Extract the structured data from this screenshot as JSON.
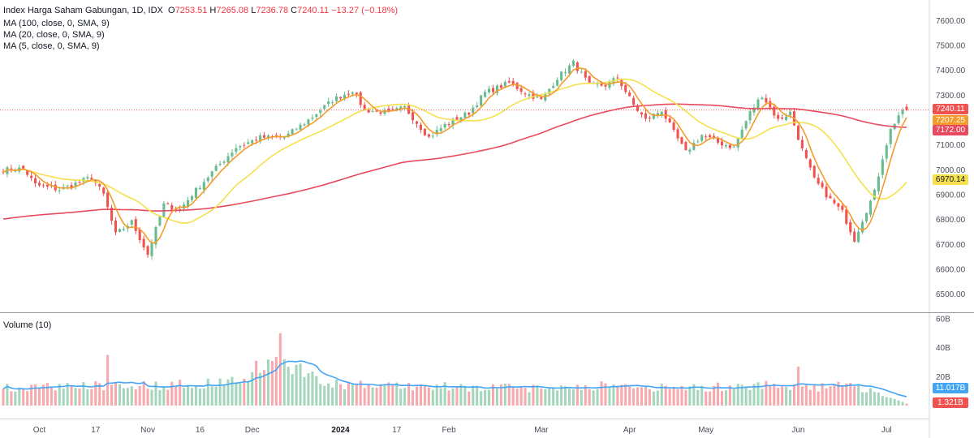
{
  "legend": {
    "symbol": "Index Harga Saham Gabungan, 1D, IDX",
    "ohlc": {
      "open_label": "O",
      "open": "7253.51",
      "high_label": "H",
      "high": "7265.08",
      "low_label": "L",
      "low": "7236.78",
      "close_label": "C",
      "close": "7240.11",
      "change": "−13.27 (−0.18%)"
    },
    "ma100": "MA (100, close, 0, SMA, 9)",
    "ma20": "MA (20, close, 0, SMA, 9)",
    "ma5": "MA (5, close, 0, SMA, 9)",
    "volume": "Volume (10)"
  },
  "price_tags": {
    "last": "7240.11",
    "ma5": "7207.25",
    "ma100": "7172.00",
    "ma20": "6970.14"
  },
  "volume_tags": {
    "ma": "11.017B",
    "last": "1.321B"
  },
  "colors": {
    "up": "#66bb8f",
    "down": "#ef5350",
    "ma100": "#e84a5f",
    "ma20": "#f5e04d",
    "ma5": "#f39c2b",
    "volume_ma": "#42a5f5",
    "vol_up": "#a5d6bd",
    "vol_down": "#f7a9ad"
  },
  "chart_data": {
    "type": "candlestick",
    "price_axis": {
      "ticks": [
        "7600.00",
        "7500.00",
        "7400.00",
        "7300.00",
        "7200.00",
        "7100.00",
        "7000.00",
        "6900.00",
        "6800.00",
        "6700.00",
        "6600.00",
        "6500.00"
      ],
      "range": [
        6450,
        7650
      ]
    },
    "volume_axis": {
      "ticks": [
        "60B",
        "40B",
        "20B"
      ],
      "range": [
        0,
        60
      ]
    },
    "time_axis": {
      "ticks": [
        {
          "label": "Oct",
          "index": 9,
          "bold": false
        },
        {
          "label": "17",
          "index": 23,
          "bold": false
        },
        {
          "label": "Nov",
          "index": 36,
          "bold": false
        },
        {
          "label": "16",
          "index": 49,
          "bold": false
        },
        {
          "label": "Dec",
          "index": 62,
          "bold": false
        },
        {
          "label": "2024",
          "index": 84,
          "bold": true
        },
        {
          "label": "17",
          "index": 98,
          "bold": false
        },
        {
          "label": "Feb",
          "index": 111,
          "bold": false
        },
        {
          "label": "Mar",
          "index": 134,
          "bold": false
        },
        {
          "label": "Apr",
          "index": 156,
          "bold": false
        },
        {
          "label": "May",
          "index": 175,
          "bold": false
        },
        {
          "label": "Jun",
          "index": 198,
          "bold": false
        },
        {
          "label": "Jul",
          "index": 220,
          "bold": false
        }
      ]
    },
    "count": 226,
    "close_anchors": [
      [
        0,
        7000
      ],
      [
        5,
        7005
      ],
      [
        8,
        6940
      ],
      [
        14,
        6920
      ],
      [
        22,
        6970
      ],
      [
        25,
        6900
      ],
      [
        28,
        6740
      ],
      [
        32,
        6790
      ],
      [
        36,
        6660
      ],
      [
        40,
        6860
      ],
      [
        44,
        6840
      ],
      [
        47,
        6900
      ],
      [
        52,
        6990
      ],
      [
        58,
        7090
      ],
      [
        64,
        7130
      ],
      [
        70,
        7130
      ],
      [
        76,
        7200
      ],
      [
        82,
        7280
      ],
      [
        87,
        7320
      ],
      [
        90,
        7240
      ],
      [
        96,
        7230
      ],
      [
        100,
        7250
      ],
      [
        106,
        7130
      ],
      [
        110,
        7180
      ],
      [
        116,
        7230
      ],
      [
        120,
        7310
      ],
      [
        126,
        7350
      ],
      [
        130,
        7310
      ],
      [
        134,
        7280
      ],
      [
        138,
        7370
      ],
      [
        142,
        7430
      ],
      [
        146,
        7340
      ],
      [
        150,
        7340
      ],
      [
        153,
        7370
      ],
      [
        157,
        7260
      ],
      [
        160,
        7200
      ],
      [
        164,
        7240
      ],
      [
        167,
        7150
      ],
      [
        170,
        7070
      ],
      [
        174,
        7140
      ],
      [
        178,
        7110
      ],
      [
        182,
        7090
      ],
      [
        186,
        7230
      ],
      [
        189,
        7300
      ],
      [
        193,
        7200
      ],
      [
        196,
        7230
      ],
      [
        199,
        7080
      ],
      [
        202,
        6960
      ],
      [
        206,
        6880
      ],
      [
        209,
        6830
      ],
      [
        212,
        6720
      ],
      [
        214,
        6800
      ],
      [
        217,
        6910
      ],
      [
        219,
        7050
      ],
      [
        221,
        7160
      ],
      [
        223,
        7220
      ],
      [
        225,
        7240
      ]
    ],
    "volume_anchors": [
      [
        0,
        12
      ],
      [
        20,
        14
      ],
      [
        40,
        14
      ],
      [
        55,
        16
      ],
      [
        62,
        20
      ],
      [
        68,
        32
      ],
      [
        72,
        28
      ],
      [
        80,
        15
      ],
      [
        90,
        14
      ],
      [
        110,
        13
      ],
      [
        130,
        12
      ],
      [
        150,
        14
      ],
      [
        160,
        12
      ],
      [
        180,
        13
      ],
      [
        192,
        15
      ],
      [
        200,
        12
      ],
      [
        210,
        14
      ],
      [
        216,
        11
      ],
      [
        225,
        1.3
      ]
    ],
    "volume_spikes": {
      "69": 50,
      "26": 35,
      "63": 31,
      "198": 27
    }
  }
}
